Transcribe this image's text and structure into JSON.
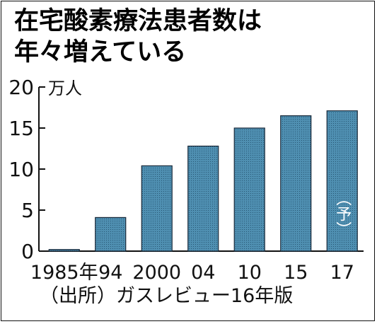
{
  "title_lines": [
    "在宅酸素療法患者数は",
    "年々増えている"
  ],
  "source_note": "（出所）ガスレビュー16年版",
  "colors": {
    "bar_fill": "#4f8fb1",
    "bar_stroke": "#1a2a3a",
    "axis": "#111111",
    "text": "#111111"
  },
  "chart_data": {
    "type": "bar",
    "title": "在宅酸素療法患者数は年々増えている",
    "unit_label": "万人",
    "categories": [
      "1985年",
      "94",
      "2000",
      "04",
      "10",
      "15",
      "17"
    ],
    "values": [
      0.2,
      4.1,
      10.4,
      12.8,
      15.0,
      16.5,
      17.1
    ],
    "annotations": [
      {
        "category": "17",
        "text": "（予）"
      }
    ],
    "yticks": [
      0,
      5,
      10,
      15,
      20
    ],
    "ylim": [
      0,
      20
    ],
    "xlabel": "",
    "ylabel": "万人",
    "grid": false,
    "legend": "none"
  }
}
